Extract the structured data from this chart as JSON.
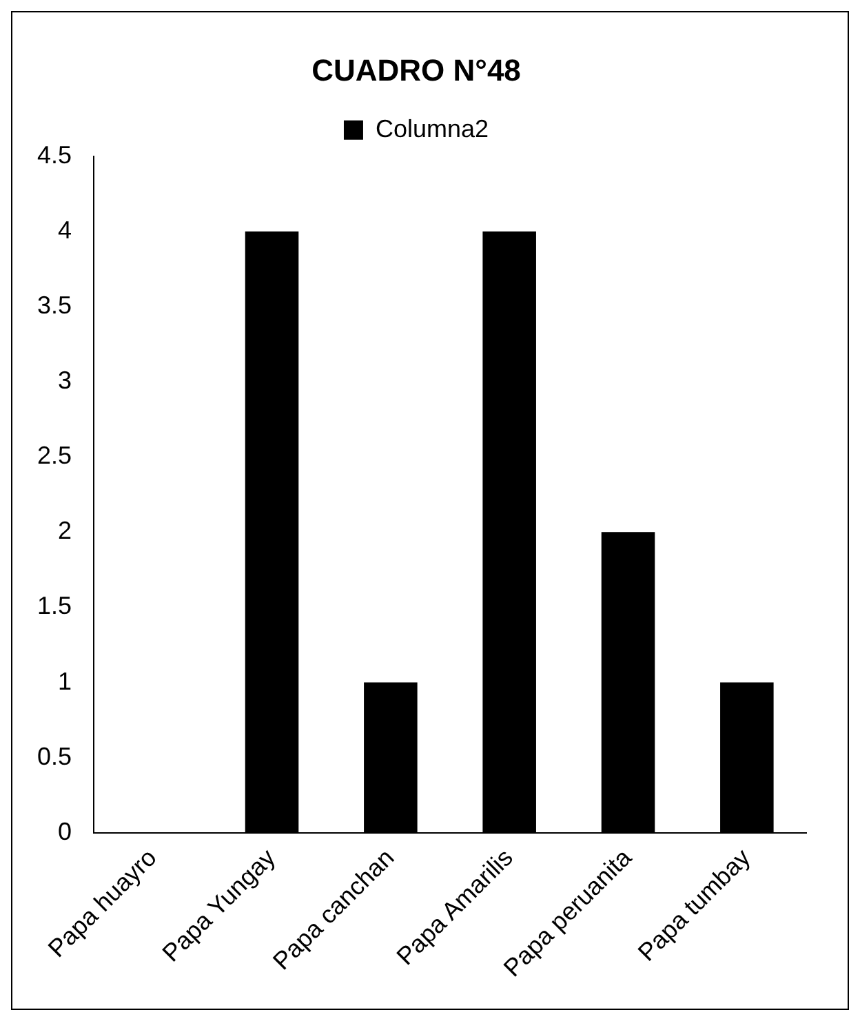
{
  "chart_data": {
    "type": "bar",
    "title": "CUADRO N°48",
    "categories": [
      "Papa huayro",
      "Papa Yungay",
      "Papa canchan",
      "Papa Amarilis",
      "Papa peruanita",
      "Papa tumbay"
    ],
    "series": [
      {
        "name": "Columna2",
        "color": "#000000",
        "values": [
          0,
          4,
          1,
          4,
          2,
          1
        ]
      }
    ],
    "ylim": [
      0,
      4.5
    ],
    "yticks": [
      0,
      0.5,
      1,
      1.5,
      2,
      2.5,
      3,
      3.5,
      4,
      4.5
    ],
    "grid": false,
    "legend": "top"
  }
}
